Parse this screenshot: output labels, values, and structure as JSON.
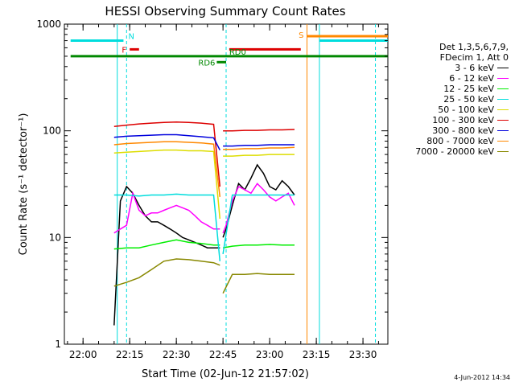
{
  "chart_data": {
    "type": "line",
    "title": "HESSI Observing Summary Count Rates",
    "xlabel": "Start Time (02-Jun-12 21:57:02)",
    "ylabel": "Count Rate (s⁻¹ detector⁻¹)",
    "x_axis": {
      "unit": "time (HH:MM)",
      "range": [
        "21:54",
        "23:38"
      ],
      "ticks": [
        "22:00",
        "22:15",
        "22:30",
        "22:45",
        "23:00",
        "23:15",
        "23:30"
      ]
    },
    "y_axis": {
      "scale": "log",
      "range": [
        1,
        1000
      ],
      "ticks": [
        "1",
        "10",
        "100",
        "1000"
      ]
    },
    "grid": false,
    "legend_position": "right",
    "legend_header": [
      "Det 1,3,5,6,7,9,",
      "FDecim 1, Att 0"
    ],
    "series": [
      {
        "name": "3 - 6 keV",
        "color": "#000000",
        "segments": [
          {
            "x": [
              "22:10",
              "22:12",
              "22:14",
              "22:16",
              "22:18",
              "22:20",
              "22:22",
              "22:24",
              "22:26",
              "22:28",
              "22:30",
              "22:32",
              "22:34",
              "22:36",
              "22:38",
              "22:40",
              "22:42",
              "22:44"
            ],
            "y": [
              1.5,
              22,
              30,
              26,
              20,
              16,
              14,
              14,
              13,
              12,
              11,
              10,
              9.5,
              9,
              8.5,
              8,
              8,
              8
            ]
          },
          {
            "x": [
              "22:45",
              "22:46",
              "22:48",
              "22:50",
              "22:52",
              "22:54",
              "22:56",
              "22:58",
              "23:00",
              "23:02",
              "23:04",
              "23:06",
              "23:08"
            ],
            "y": [
              10,
              12,
              20,
              32,
              28,
              36,
              48,
              40,
              30,
              28,
              34,
              30,
              25
            ]
          }
        ]
      },
      {
        "name": "6 - 12 keV",
        "color": "#ff00ff",
        "segments": [
          {
            "x": [
              "22:10",
              "22:12",
              "22:14",
              "22:16",
              "22:18",
              "22:20",
              "22:22",
              "22:24",
              "22:26",
              "22:28",
              "22:30",
              "22:32",
              "22:34",
              "22:36",
              "22:38",
              "22:40",
              "22:42",
              "22:44"
            ],
            "y": [
              11,
              12,
              13,
              26,
              18,
              16,
              17,
              17,
              18,
              19,
              20,
              19,
              18,
              16,
              14,
              13,
              12,
              12
            ]
          },
          {
            "x": [
              "22:45",
              "22:46",
              "22:48",
              "22:50",
              "22:52",
              "22:54",
              "22:56",
              "22:58",
              "23:00",
              "23:02",
              "23:04",
              "23:06",
              "23:08"
            ],
            "y": [
              11,
              13,
              22,
              30,
              28,
              26,
              32,
              28,
              24,
              22,
              24,
              26,
              20
            ]
          }
        ]
      },
      {
        "name": "12 - 25 keV",
        "color": "#00ee00",
        "segments": [
          {
            "x": [
              "22:10",
              "22:14",
              "22:18",
              "22:22",
              "22:26",
              "22:30",
              "22:34",
              "22:38",
              "22:42",
              "22:44"
            ],
            "y": [
              7.8,
              8,
              8,
              8.5,
              9,
              9.5,
              9,
              8.8,
              8.5,
              8.5
            ]
          },
          {
            "x": [
              "22:45",
              "22:48",
              "22:52",
              "22:56",
              "23:00",
              "23:04",
              "23:08"
            ],
            "y": [
              8,
              8.3,
              8.5,
              8.5,
              8.6,
              8.5,
              8.5
            ]
          }
        ]
      },
      {
        "name": "25 - 50 keV",
        "color": "#00dddd",
        "segments": [
          {
            "x": [
              "22:10",
              "22:14",
              "22:18",
              "22:22",
              "22:26",
              "22:30",
              "22:34",
              "22:38",
              "22:42",
              "22:44"
            ],
            "y": [
              25,
              25,
              24.5,
              25,
              25,
              25.5,
              25,
              25,
              25,
              6
            ]
          },
          {
            "x": [
              "22:45",
              "22:48",
              "22:52",
              "22:56",
              "23:00",
              "23:04",
              "23:08"
            ],
            "y": [
              7,
              25,
              25,
              25,
              25,
              25,
              25
            ]
          }
        ]
      },
      {
        "name": "50 - 100 keV",
        "color": "#dddd00",
        "segments": [
          {
            "x": [
              "22:10",
              "22:14",
              "22:18",
              "22:22",
              "22:26",
              "22:30",
              "22:34",
              "22:38",
              "22:42",
              "22:44"
            ],
            "y": [
              62,
              63,
              64,
              65,
              66,
              66,
              65,
              65,
              64,
              15
            ]
          },
          {
            "x": [
              "22:45",
              "22:48",
              "22:52",
              "22:56",
              "23:00",
              "23:04",
              "23:08"
            ],
            "y": [
              58,
              58,
              59,
              59,
              60,
              60,
              60
            ]
          }
        ]
      },
      {
        "name": "100 - 300 keV",
        "color": "#dd0000",
        "segments": [
          {
            "x": [
              "22:10",
              "22:14",
              "22:18",
              "22:22",
              "22:26",
              "22:30",
              "22:34",
              "22:38",
              "22:42",
              "22:44"
            ],
            "y": [
              110,
              113,
              116,
              118,
              120,
              121,
              120,
              118,
              115,
              30
            ]
          },
          {
            "x": [
              "22:45",
              "22:48",
              "22:52",
              "22:56",
              "23:00",
              "23:04",
              "23:08"
            ],
            "y": [
              100,
              100,
              101,
              101,
              102,
              102,
              103
            ]
          }
        ]
      },
      {
        "name": "300 - 800 keV",
        "color": "#0000dd",
        "segments": [
          {
            "x": [
              "22:10",
              "22:14",
              "22:18",
              "22:22",
              "22:26",
              "22:30",
              "22:34",
              "22:38",
              "22:42",
              "22:44"
            ],
            "y": [
              87,
              89,
              90,
              91,
              92,
              92,
              90,
              88,
              86,
              66
            ]
          },
          {
            "x": [
              "22:45",
              "22:48",
              "22:52",
              "22:56",
              "23:00",
              "23:04",
              "23:08"
            ],
            "y": [
              72,
              72,
              73,
              73,
              74,
              74,
              74
            ]
          }
        ]
      },
      {
        "name": "800 - 7000 keV",
        "color": "#ff8800",
        "segments": [
          {
            "x": [
              "22:10",
              "22:14",
              "22:18",
              "22:22",
              "22:26",
              "22:30",
              "22:34",
              "22:38",
              "22:42",
              "22:44"
            ],
            "y": [
              74,
              76,
              77,
              78,
              79,
              79,
              78,
              77,
              75,
              24
            ]
          },
          {
            "x": [
              "22:45",
              "22:48",
              "22:52",
              "22:56",
              "23:00",
              "23:04",
              "23:08"
            ],
            "y": [
              67,
              67,
              68,
              68,
              69,
              69,
              70
            ]
          }
        ]
      },
      {
        "name": "7000 - 20000 keV",
        "color": "#888800",
        "segments": [
          {
            "x": [
              "22:10",
              "22:14",
              "22:18",
              "22:22",
              "22:26",
              "22:30",
              "22:34",
              "22:38",
              "22:42",
              "22:44"
            ],
            "y": [
              3.5,
              3.8,
              4.2,
              5,
              6,
              6.3,
              6.2,
              6,
              5.8,
              5.5
            ]
          },
          {
            "x": [
              "22:45",
              "22:48",
              "22:52",
              "22:56",
              "23:00",
              "23:04",
              "23:08"
            ],
            "y": [
              3,
              4.5,
              4.5,
              4.6,
              4.5,
              4.5,
              4.5
            ]
          }
        ]
      }
    ],
    "flag_bars": [
      {
        "label": "N",
        "color": "#00dddd",
        "x": [
          "21:56",
          "22:13"
        ],
        "y": 700
      },
      {
        "label": "",
        "color": "#00dddd",
        "x": [
          "23:16",
          "23:38"
        ],
        "y": 700
      },
      {
        "label": "F",
        "color": "#dd0000",
        "x": [
          "22:15",
          "22:18"
        ],
        "y": 580
      },
      {
        "label": "",
        "color": "#dd0000",
        "x": [
          "22:47",
          "23:10"
        ],
        "y": 580
      },
      {
        "label": "S",
        "color": "#ff8800",
        "x": [
          "23:12",
          "23:38"
        ],
        "y": 770
      },
      {
        "label": "RD0",
        "color": "#008800",
        "x": [
          "21:56",
          "23:38"
        ],
        "y": 500
      },
      {
        "label": "RD6",
        "color": "#008800",
        "x": [
          "22:43",
          "22:46"
        ],
        "y": 440
      }
    ],
    "vertical_markers": [
      {
        "x": "22:11",
        "color": "#00dddd",
        "style": "solid"
      },
      {
        "x": "22:14",
        "color": "#00dddd",
        "style": "dashed"
      },
      {
        "x": "22:46",
        "color": "#00dddd",
        "style": "dashed"
      },
      {
        "x": "23:12",
        "color": "#ff8800",
        "style": "solid"
      },
      {
        "x": "23:16",
        "color": "#00dddd",
        "style": "solid"
      },
      {
        "x": "23:34",
        "color": "#00dddd",
        "style": "dashed"
      }
    ]
  },
  "timestamp": "4-Jun-2012 14:34"
}
